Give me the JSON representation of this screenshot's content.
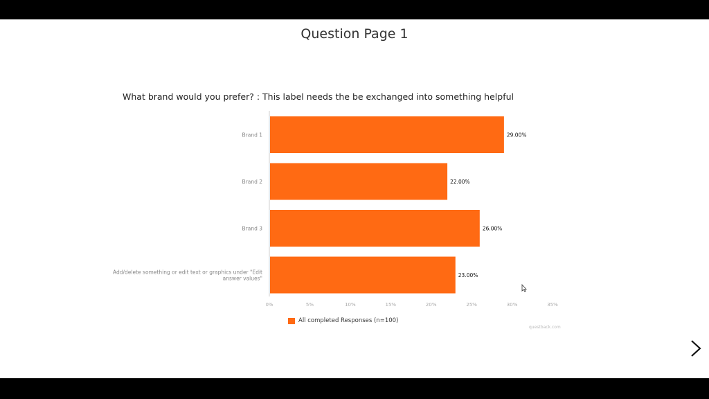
{
  "page": {
    "title": "Question Page 1"
  },
  "question": {
    "text": "What brand would you prefer? : This label needs the be exchanged into something helpful"
  },
  "colors": {
    "bar": "#ff6a13",
    "axis": "#cfcfcf",
    "stage": "#ffffff",
    "frame": "#000000"
  },
  "chart_data": {
    "type": "bar",
    "orientation": "horizontal",
    "categories": [
      [
        "Brand 1"
      ],
      [
        "Brand 2"
      ],
      [
        "Brand 3"
      ],
      [
        "Add/delete something or edit text or graphics under \"Edit",
        "answer values\""
      ]
    ],
    "series": [
      {
        "name": "All completed Responses (n=100)",
        "values": [
          29,
          22,
          26,
          23
        ]
      }
    ],
    "value_labels": [
      "29.00%",
      "22.00%",
      "26.00%",
      "23.00%"
    ],
    "xticks": [
      0,
      5,
      10,
      15,
      20,
      25,
      30,
      35
    ],
    "xtick_labels": [
      "0%",
      "5%",
      "10%",
      "15%",
      "20%",
      "25%",
      "30%",
      "35%"
    ],
    "xlim": [
      0,
      35
    ],
    "legend_position": "bottom-left",
    "grid": false
  },
  "credit": {
    "text": "questback.com"
  },
  "nav": {
    "next_icon": "chevron-right-icon"
  },
  "cursor": {
    "icon": "mouse-cursor-icon"
  }
}
